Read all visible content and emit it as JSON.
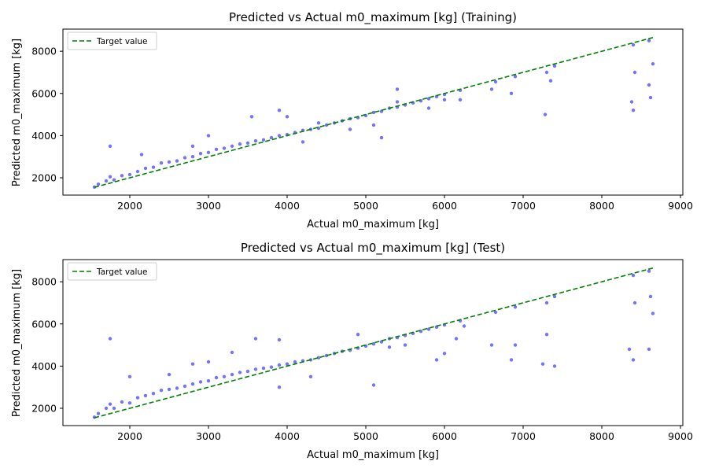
{
  "chart_data": [
    {
      "type": "scatter",
      "title": "Predicted vs Actual m0_maximum [kg] (Training)",
      "xlabel": "Actual m0_maximum [kg]",
      "ylabel": "Predicted m0_maximum [kg]",
      "xlim": [
        1150,
        9030
      ],
      "ylim": [
        1180,
        9050
      ],
      "xticks": [
        2000,
        3000,
        4000,
        5000,
        6000,
        7000,
        8000,
        9000
      ],
      "yticks": [
        2000,
        4000,
        6000,
        8000
      ],
      "grid": false,
      "legend": {
        "position": "top-left",
        "entries": [
          "Target value"
        ]
      },
      "colors": {
        "points": "#0000ff",
        "target_line": "#008000"
      },
      "target_line": {
        "x": [
          1550,
          8650
        ],
        "y": [
          1550,
          8650
        ]
      },
      "series": [
        {
          "points": [
            [
              1550,
              1560
            ],
            [
              1600,
              1700
            ],
            [
              1700,
              1850
            ],
            [
              1750,
              2050
            ],
            [
              1800,
              1900
            ],
            [
              1900,
              2100
            ],
            [
              2000,
              2150
            ],
            [
              2100,
              2300
            ],
            [
              2200,
              2450
            ],
            [
              2300,
              2500
            ],
            [
              2400,
              2700
            ],
            [
              2500,
              2750
            ],
            [
              2600,
              2800
            ],
            [
              2700,
              2950
            ],
            [
              2800,
              3000
            ],
            [
              2900,
              3150
            ],
            [
              3000,
              3200
            ],
            [
              3100,
              3350
            ],
            [
              3200,
              3400
            ],
            [
              3300,
              3500
            ],
            [
              3400,
              3600
            ],
            [
              3500,
              3650
            ],
            [
              3600,
              3750
            ],
            [
              3700,
              3800
            ],
            [
              3800,
              3900
            ],
            [
              3900,
              4000
            ],
            [
              4000,
              4050
            ],
            [
              4100,
              4150
            ],
            [
              4200,
              4250
            ],
            [
              4300,
              4300
            ],
            [
              4400,
              4350
            ],
            [
              4500,
              4500
            ],
            [
              4600,
              4600
            ],
            [
              4700,
              4700
            ],
            [
              4800,
              4800
            ],
            [
              4900,
              4850
            ],
            [
              5000,
              4950
            ],
            [
              5100,
              5100
            ],
            [
              5200,
              5150
            ],
            [
              5300,
              5300
            ],
            [
              5400,
              5350
            ],
            [
              5500,
              5450
            ],
            [
              5600,
              5550
            ],
            [
              5700,
              5650
            ],
            [
              5800,
              5750
            ],
            [
              5900,
              5850
            ],
            [
              6000,
              5950
            ],
            [
              6200,
              6150
            ],
            [
              6650,
              6550
            ],
            [
              6900,
              6800
            ],
            [
              7300,
              7000
            ],
            [
              7400,
              7300
            ],
            [
              8400,
              8300
            ],
            [
              8600,
              8500
            ],
            [
              1750,
              3500
            ],
            [
              2150,
              3100
            ],
            [
              2800,
              3500
            ],
            [
              3000,
              4000
            ],
            [
              3550,
              4900
            ],
            [
              3900,
              5200
            ],
            [
              4000,
              4900
            ],
            [
              4200,
              3700
            ],
            [
              4400,
              4600
            ],
            [
              4800,
              4300
            ],
            [
              5100,
              4500
            ],
            [
              5200,
              3900
            ],
            [
              5400,
              5600
            ],
            [
              5400,
              6200
            ],
            [
              5800,
              5300
            ],
            [
              6000,
              5700
            ],
            [
              6200,
              5700
            ],
            [
              6600,
              6200
            ],
            [
              6850,
              6000
            ],
            [
              7280,
              5000
            ],
            [
              7350,
              6600
            ],
            [
              8380,
              5600
            ],
            [
              8400,
              5200
            ],
            [
              8420,
              7000
            ],
            [
              8620,
              5800
            ],
            [
              8650,
              7400
            ],
            [
              8600,
              6400
            ]
          ]
        }
      ]
    },
    {
      "type": "scatter",
      "title": "Predicted vs Actual m0_maximum [kg] (Test)",
      "xlabel": "Actual m0_maximum [kg]",
      "ylabel": "Predicted m0_maximum [kg]",
      "xlim": [
        1150,
        9030
      ],
      "ylim": [
        1180,
        9050
      ],
      "xticks": [
        2000,
        3000,
        4000,
        5000,
        6000,
        7000,
        8000,
        9000
      ],
      "yticks": [
        2000,
        4000,
        6000,
        8000
      ],
      "grid": false,
      "legend": {
        "position": "top-left",
        "entries": [
          "Target value"
        ]
      },
      "colors": {
        "points": "#0000ff",
        "target_line": "#008000"
      },
      "target_line": {
        "x": [
          1550,
          8650
        ],
        "y": [
          1550,
          8650
        ]
      },
      "series": [
        {
          "points": [
            [
              1550,
              1580
            ],
            [
              1600,
              1750
            ],
            [
              1700,
              2000
            ],
            [
              1750,
              2200
            ],
            [
              1800,
              2000
            ],
            [
              1900,
              2300
            ],
            [
              2000,
              2250
            ],
            [
              2100,
              2500
            ],
            [
              2200,
              2600
            ],
            [
              2300,
              2700
            ],
            [
              2400,
              2850
            ],
            [
              2500,
              2900
            ],
            [
              2600,
              2950
            ],
            [
              2700,
              3050
            ],
            [
              2800,
              3150
            ],
            [
              2900,
              3250
            ],
            [
              3000,
              3300
            ],
            [
              3100,
              3450
            ],
            [
              3200,
              3500
            ],
            [
              3300,
              3600
            ],
            [
              3400,
              3700
            ],
            [
              3500,
              3750
            ],
            [
              3600,
              3850
            ],
            [
              3700,
              3900
            ],
            [
              3800,
              3950
            ],
            [
              3900,
              4050
            ],
            [
              4000,
              4100
            ],
            [
              4100,
              4200
            ],
            [
              4200,
              4250
            ],
            [
              4300,
              4300
            ],
            [
              4400,
              4400
            ],
            [
              4500,
              4500
            ],
            [
              4600,
              4600
            ],
            [
              4700,
              4700
            ],
            [
              4800,
              4750
            ],
            [
              4900,
              4850
            ],
            [
              5000,
              4950
            ],
            [
              5100,
              5050
            ],
            [
              5200,
              5150
            ],
            [
              5300,
              5300
            ],
            [
              5400,
              5350
            ],
            [
              5500,
              5450
            ],
            [
              5600,
              5550
            ],
            [
              5700,
              5650
            ],
            [
              5800,
              5750
            ],
            [
              5900,
              5850
            ],
            [
              6000,
              5950
            ],
            [
              6200,
              6150
            ],
            [
              6650,
              6550
            ],
            [
              6900,
              6800
            ],
            [
              7300,
              7000
            ],
            [
              7400,
              7300
            ],
            [
              8400,
              8300
            ],
            [
              8600,
              8500
            ],
            [
              1750,
              5300
            ],
            [
              2000,
              3500
            ],
            [
              2500,
              3600
            ],
            [
              2800,
              4100
            ],
            [
              3000,
              4200
            ],
            [
              3300,
              4650
            ],
            [
              3600,
              5300
            ],
            [
              3900,
              5250
            ],
            [
              3900,
              3000
            ],
            [
              4300,
              3500
            ],
            [
              4900,
              5500
            ],
            [
              5100,
              3100
            ],
            [
              5300,
              4900
            ],
            [
              5500,
              5000
            ],
            [
              5900,
              4300
            ],
            [
              6000,
              4600
            ],
            [
              6150,
              5300
            ],
            [
              6250,
              5900
            ],
            [
              6600,
              5000
            ],
            [
              6850,
              4300
            ],
            [
              6900,
              5000
            ],
            [
              7250,
              4100
            ],
            [
              7400,
              4000
            ],
            [
              7300,
              5500
            ],
            [
              8350,
              4800
            ],
            [
              8400,
              4300
            ],
            [
              8420,
              7000
            ],
            [
              8600,
              4800
            ],
            [
              8650,
              6500
            ],
            [
              8620,
              7300
            ]
          ]
        }
      ]
    }
  ]
}
